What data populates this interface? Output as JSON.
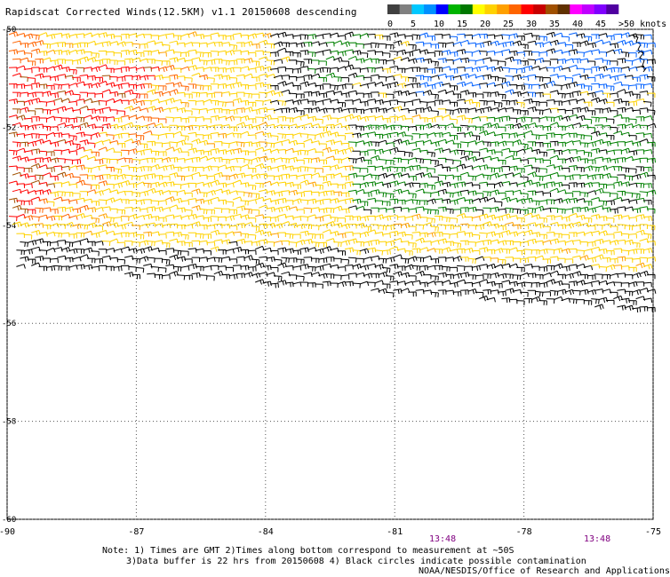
{
  "title": "Rapidscat Corrected Winds(12.5KM) v1.1 20150608 descending",
  "legend": {
    "labels": [
      "0",
      "5",
      "10",
      "15",
      "20",
      "25",
      "30",
      "35",
      "40",
      "45",
      ">50 knots"
    ],
    "colors": [
      "#404040",
      "#808080",
      "#00c8ff",
      "#0090ff",
      "#0000ff",
      "#00b400",
      "#007800",
      "#ffff00",
      "#ffd200",
      "#ffa000",
      "#ff6400",
      "#ff0000",
      "#c80000",
      "#a05000",
      "#603000",
      "#ff00ff",
      "#c000ff",
      "#8000ff",
      "#5000a0"
    ]
  },
  "map": {
    "lon_ticks": [
      "-90",
      "-87",
      "-84",
      "-81",
      "-78",
      "-75"
    ],
    "lat_ticks": [
      "-50",
      "-52",
      "-54",
      "-56",
      "-58",
      "-60"
    ],
    "lon_range": [
      -90,
      -75
    ],
    "lat_range": [
      -60,
      -50
    ]
  },
  "times": [
    "13:48",
    "13:48"
  ],
  "notes": [
    "Note: 1) Times are GMT 2)Times along bottom correspond to measurement at ~50S",
    "3)Data buffer is 22 hrs from 20150608 4) Black circles indicate possible contamination",
    "NOAA/NESDIS/Office of Research and Applications"
  ],
  "colors": {
    "calm": "#000000",
    "light": "#ffd200",
    "moderate": "#ff0000",
    "green": "#008000",
    "blue": "#0060ff",
    "strong": "#c000ff"
  }
}
